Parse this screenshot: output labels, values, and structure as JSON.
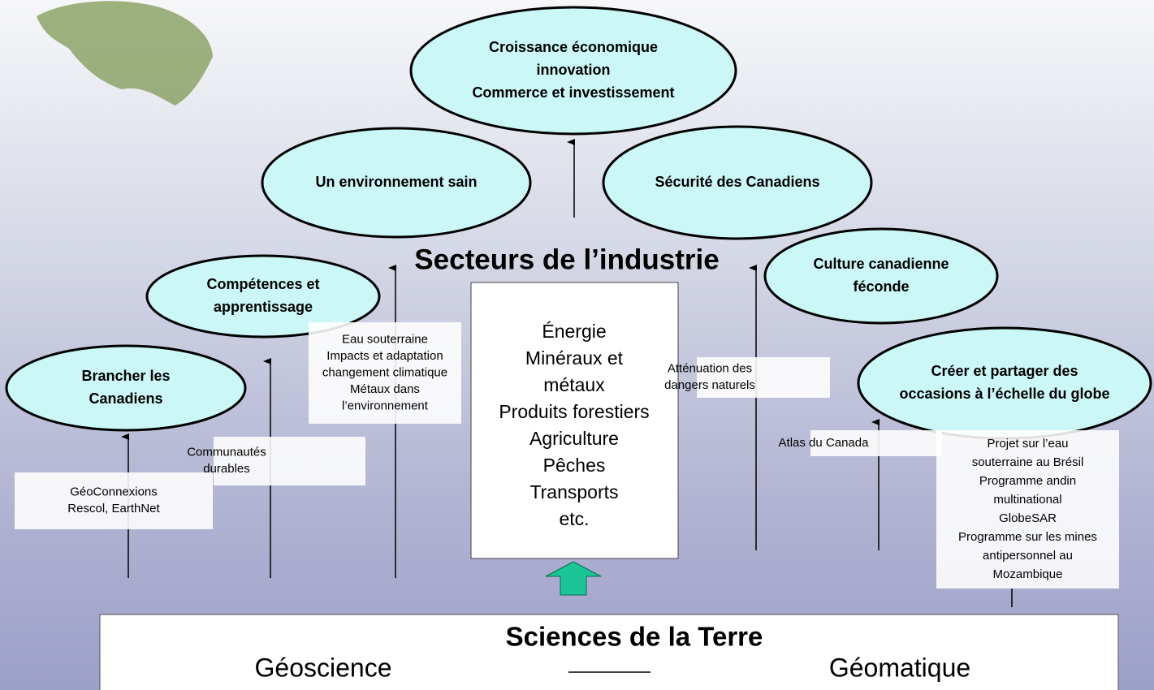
{
  "title": "Secteurs de l’industrie",
  "nodes": [
    [
      "Croissance économique",
      "innovation",
      "Commerce et investissement"
    ],
    [
      "Un environnement sain"
    ],
    [
      "Sécurité des Canadiens"
    ],
    [
      "Compétences et",
      "apprentissage"
    ],
    [
      "Culture canadienne",
      "féconde"
    ],
    [
      "Brancher les",
      "Canadiens"
    ],
    [
      "Créer et partager des",
      "occasions à l’échelle du globe"
    ]
  ],
  "sectors": [
    "Énergie",
    "Minéraux et",
    "métaux",
    "Produits forestiers",
    "Agriculture",
    "Pêches",
    "Transports",
    "etc."
  ],
  "boxes": [
    [
      "GéoConnexions",
      "Rescol, EarthNet"
    ],
    [
      "Communautés",
      "durables"
    ],
    [
      "Eau souterraine",
      "Impacts et adaptation",
      "changement climatique",
      "Métaux dans",
      "l’environnement"
    ],
    [
      "Atténuation des",
      "dangers naturels"
    ],
    [
      "Atlas du Canada"
    ],
    [
      "Projet sur l’eau",
      "souterraine au Brésil",
      "Programme andin",
      "multinational",
      "GlobeSAR",
      "Programme sur les mines",
      "antipersonnel au",
      "Mozambique"
    ]
  ],
  "foundation": {
    "title": "Sciences de la Terre",
    "left": "Géoscience",
    "right": "Géomatique"
  }
}
